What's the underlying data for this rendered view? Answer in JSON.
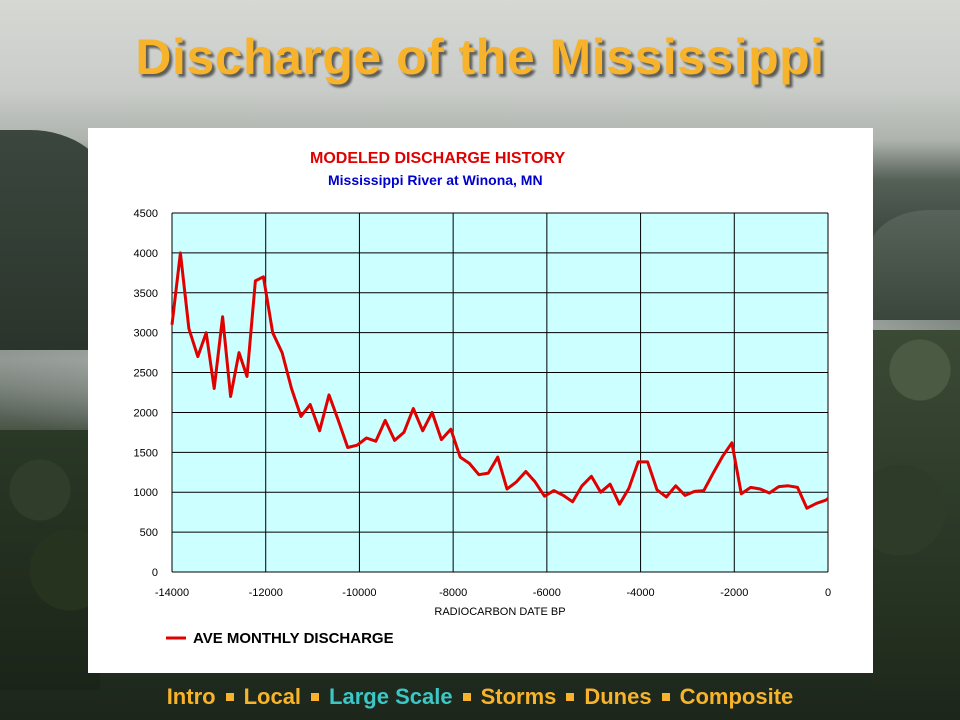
{
  "slide": {
    "title": "Discharge of the Mississippi"
  },
  "nav": {
    "items": [
      "Intro",
      "Local",
      "Large Scale",
      "Storms",
      "Dunes",
      "Composite"
    ],
    "active": "Large Scale"
  },
  "colors": {
    "title": "#f7b32b",
    "nav_active": "#3cc6c6",
    "plot_background": "#ccffff",
    "line": "#e00000",
    "chart_title": "#e00000",
    "chart_subtitle": "#0000cc"
  },
  "chart_data": {
    "type": "line",
    "title": "MODELED DISCHARGE HISTORY",
    "subtitle": "Mississippi River at Winona, MN",
    "xlabel": "RADIOCARBON DATE BP",
    "ylabel": "",
    "xlim": [
      -14000,
      0
    ],
    "ylim": [
      0,
      4500
    ],
    "xticks": [
      -14000,
      -12000,
      -10000,
      -8000,
      -6000,
      -4000,
      -2000,
      0
    ],
    "yticks": [
      0,
      500,
      1000,
      1500,
      2000,
      2500,
      3000,
      3500,
      4000,
      4500
    ],
    "grid": true,
    "legend": "bottom-left",
    "series": [
      {
        "name": "AVE MONTHLY DISCHARGE",
        "color": "#e00000",
        "x": [
          -14000,
          -13820,
          -13640,
          -13450,
          -13270,
          -13100,
          -12920,
          -12750,
          -12570,
          -12400,
          -12220,
          -12050,
          -11850,
          -11650,
          -11450,
          -11250,
          -11050,
          -10850,
          -10650,
          -10450,
          -10250,
          -10050,
          -9850,
          -9650,
          -9450,
          -9250,
          -9050,
          -8850,
          -8650,
          -8450,
          -8250,
          -8050,
          -7850,
          -7650,
          -7450,
          -7250,
          -7050,
          -6850,
          -6650,
          -6450,
          -6250,
          -6050,
          -5850,
          -5650,
          -5450,
          -5250,
          -5050,
          -4850,
          -4650,
          -4450,
          -4250,
          -4050,
          -3850,
          -3650,
          -3450,
          -3250,
          -3050,
          -2850,
          -2650,
          -2450,
          -2250,
          -2050,
          -1850,
          -1650,
          -1450,
          -1250,
          -1050,
          -850,
          -650,
          -450,
          -250,
          -50,
          0
        ],
        "y": [
          3100,
          4000,
          3050,
          2700,
          3000,
          2300,
          3200,
          2200,
          2750,
          2450,
          3650,
          3700,
          3000,
          2750,
          2300,
          1950,
          2100,
          1770,
          2220,
          1900,
          1560,
          1590,
          1680,
          1640,
          1900,
          1650,
          1750,
          2050,
          1770,
          2000,
          1660,
          1790,
          1440,
          1360,
          1220,
          1240,
          1440,
          1040,
          1130,
          1260,
          1130,
          950,
          1020,
          960,
          880,
          1080,
          1200,
          1000,
          1100,
          850,
          1050,
          1380,
          1380,
          1030,
          940,
          1080,
          960,
          1010,
          1020,
          1240,
          1450,
          1620,
          980,
          1060,
          1040,
          990,
          1070,
          1080,
          1060,
          800,
          860,
          900,
          920
        ]
      }
    ]
  }
}
